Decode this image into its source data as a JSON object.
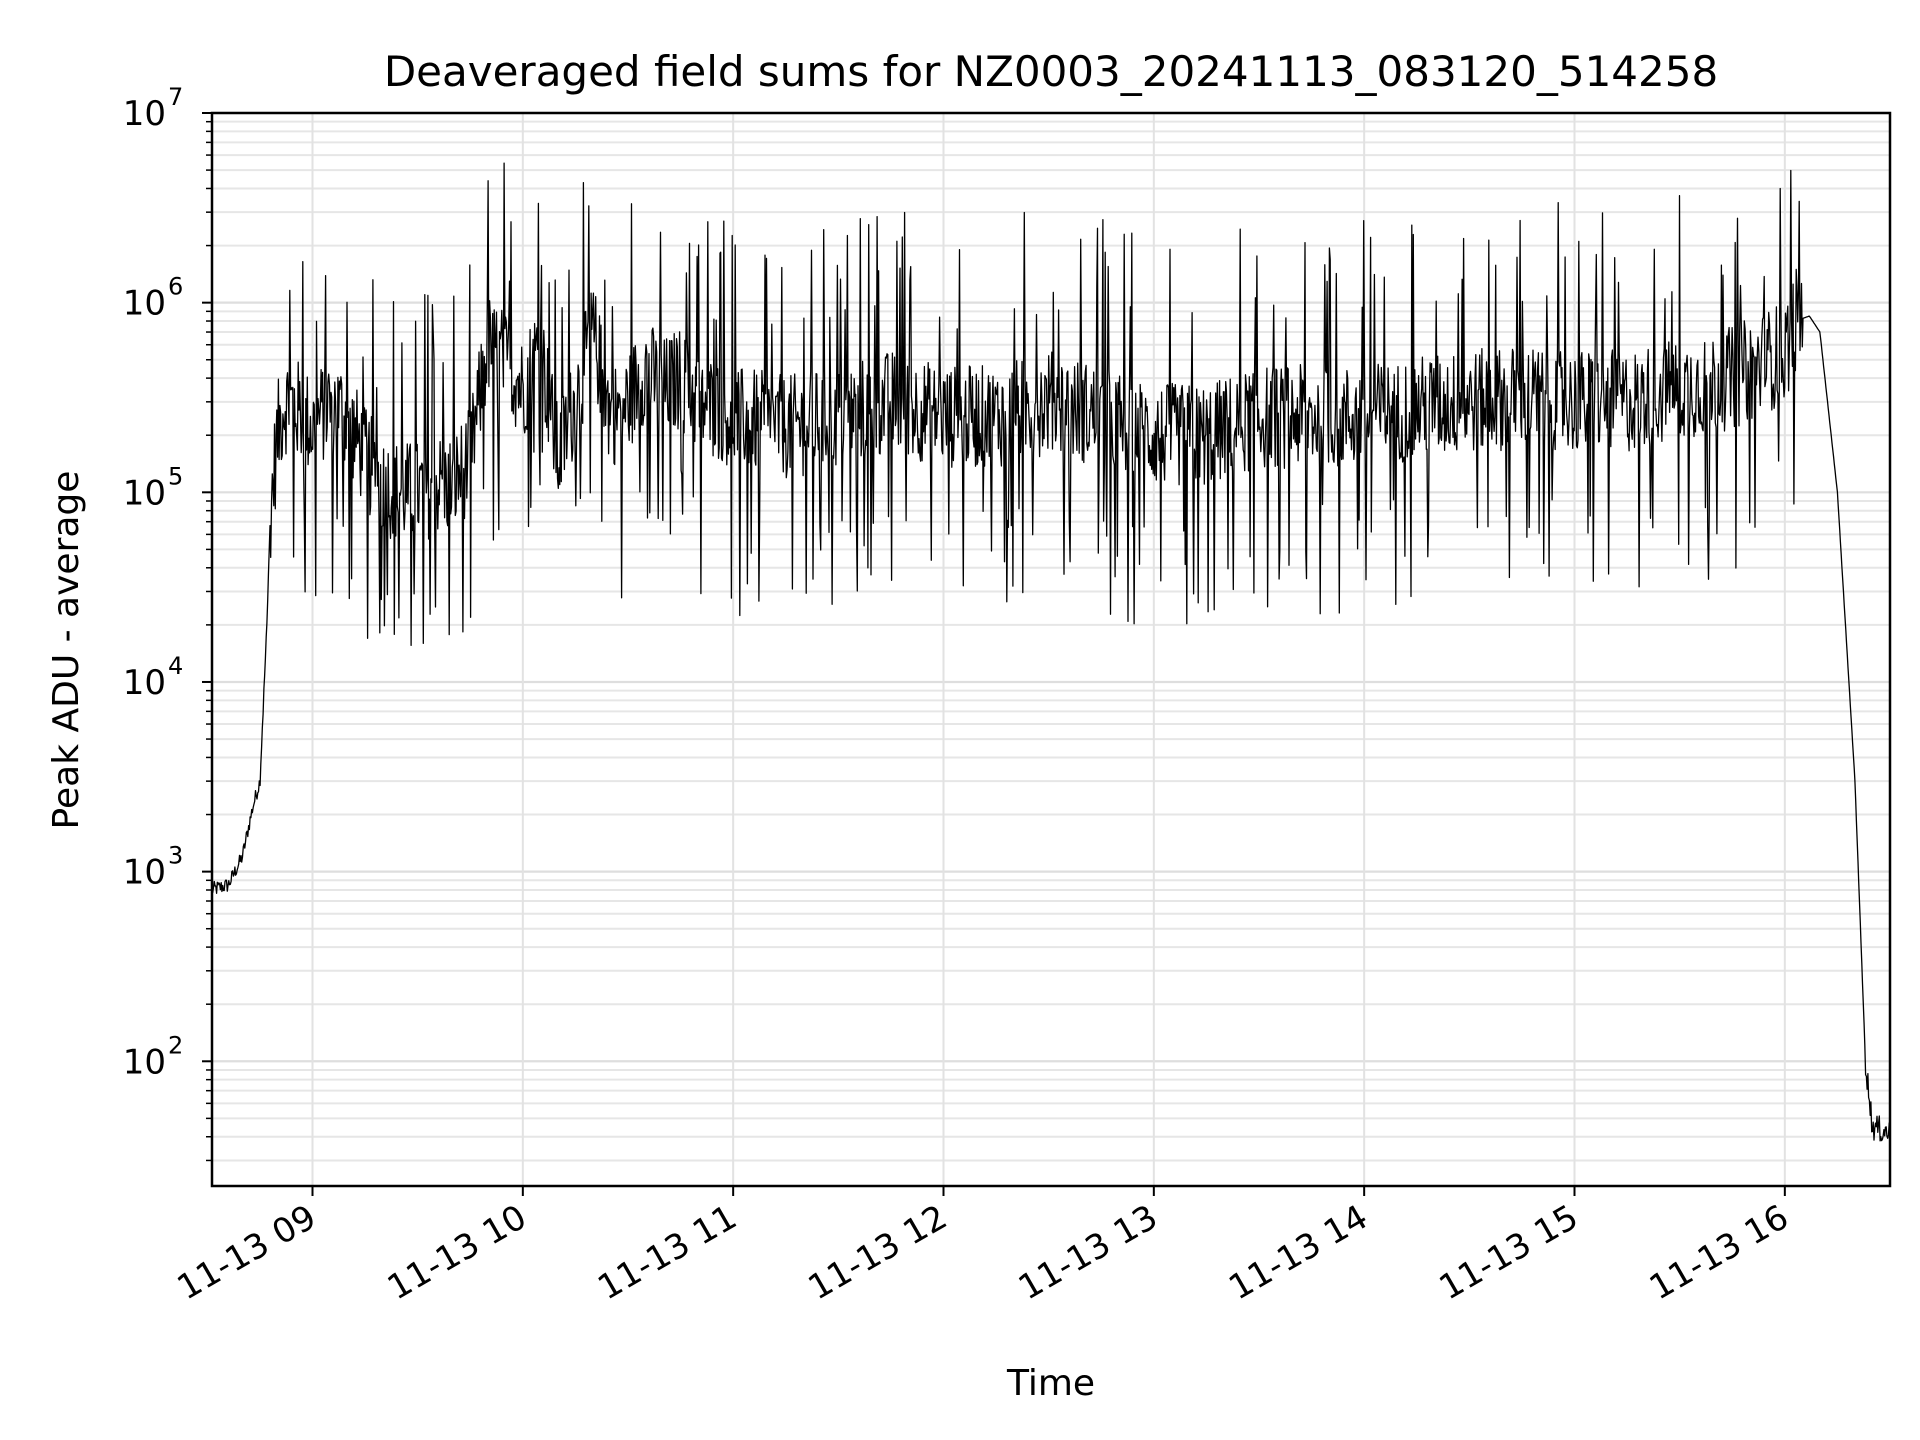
{
  "chart_data": {
    "type": "line",
    "title": "Deaveraged field sums for NZ0003_20241113_083120_514258",
    "xlabel": "Time",
    "ylabel": "Peak ADU - average",
    "y_scale": "log",
    "ylim": [
      22,
      10000000
    ],
    "xlim": [
      "2024-11-13T08:31:20",
      "2024-11-13T16:30:00"
    ],
    "grid": true,
    "legend": "none",
    "line_color": "#000000",
    "x_ticks": [
      {
        "value": "2024-11-13T09:00",
        "label": "11-13 09"
      },
      {
        "value": "2024-11-13T10:00",
        "label": "11-13 10"
      },
      {
        "value": "2024-11-13T11:00",
        "label": "11-13 11"
      },
      {
        "value": "2024-11-13T12:00",
        "label": "11-13 12"
      },
      {
        "value": "2024-11-13T13:00",
        "label": "11-13 13"
      },
      {
        "value": "2024-11-13T14:00",
        "label": "11-13 14"
      },
      {
        "value": "2024-11-13T15:00",
        "label": "11-13 15"
      },
      {
        "value": "2024-11-13T16:00",
        "label": "11-13 16"
      }
    ],
    "y_ticks": [
      {
        "value": 100,
        "base": "10",
        "exp": "2"
      },
      {
        "value": 1000,
        "base": "10",
        "exp": "3"
      },
      {
        "value": 10000,
        "base": "10",
        "exp": "4"
      },
      {
        "value": 100000,
        "base": "10",
        "exp": "5"
      },
      {
        "value": 1000000,
        "base": "10",
        "exp": "6"
      },
      {
        "value": 10000000,
        "base": "10",
        "exp": "7"
      }
    ],
    "series": [
      {
        "x": [
          "2024-11-13T08:31",
          "2024-11-13T08:36",
          "2024-11-13T08:40",
          "2024-11-13T08:43",
          "2024-11-13T08:45",
          "2024-11-13T08:47",
          "2024-11-13T08:48",
          "2024-11-13T08:50",
          "2024-11-13T08:52",
          "2024-11-13T08:55",
          "2024-11-13T09:00",
          "2024-11-13T09:05",
          "2024-11-13T09:10",
          "2024-11-13T09:15",
          "2024-11-13T09:20",
          "2024-11-13T09:25",
          "2024-11-13T09:30",
          "2024-11-13T09:35",
          "2024-11-13T09:40",
          "2024-11-13T09:45",
          "2024-11-13T09:50",
          "2024-11-13T09:55",
          "2024-11-13T10:00",
          "2024-11-13T10:05",
          "2024-11-13T10:10",
          "2024-11-13T10:15",
          "2024-11-13T10:20",
          "2024-11-13T10:25",
          "2024-11-13T10:30",
          "2024-11-13T10:35",
          "2024-11-13T10:40",
          "2024-11-13T10:45",
          "2024-11-13T10:50",
          "2024-11-13T11:00",
          "2024-11-13T11:15",
          "2024-11-13T11:30",
          "2024-11-13T11:45",
          "2024-11-13T12:00",
          "2024-11-13T12:15",
          "2024-11-13T12:30",
          "2024-11-13T12:45",
          "2024-11-13T13:00",
          "2024-11-13T13:15",
          "2024-11-13T13:30",
          "2024-11-13T13:45",
          "2024-11-13T14:00",
          "2024-11-13T14:15",
          "2024-11-13T14:30",
          "2024-11-13T14:45",
          "2024-11-13T15:00",
          "2024-11-13T15:15",
          "2024-11-13T15:30",
          "2024-11-13T15:45",
          "2024-11-13T16:00",
          "2024-11-13T16:03",
          "2024-11-13T16:07",
          "2024-11-13T16:10",
          "2024-11-13T16:15",
          "2024-11-13T16:20",
          "2024-11-13T16:23",
          "2024-11-13T16:25",
          "2024-11-13T16:30"
        ],
        "y": [
          800,
          850,
          1200,
          2200,
          3000,
          20000,
          80000,
          200000,
          300000,
          280000,
          220000,
          300000,
          250000,
          150000,
          110000,
          100000,
          100000,
          110000,
          110000,
          150000,
          600000,
          500000,
          350000,
          600000,
          150000,
          300000,
          700000,
          250000,
          300000,
          450000,
          350000,
          400000,
          300000,
          250000,
          220000,
          250000,
          300000,
          250000,
          250000,
          300000,
          250000,
          200000,
          200000,
          250000,
          250000,
          250000,
          280000,
          300000,
          320000,
          300000,
          300000,
          350000,
          400000,
          550000,
          800000,
          850000,
          700000,
          100000,
          3000,
          100,
          45,
          42
        ]
      }
    ]
  }
}
